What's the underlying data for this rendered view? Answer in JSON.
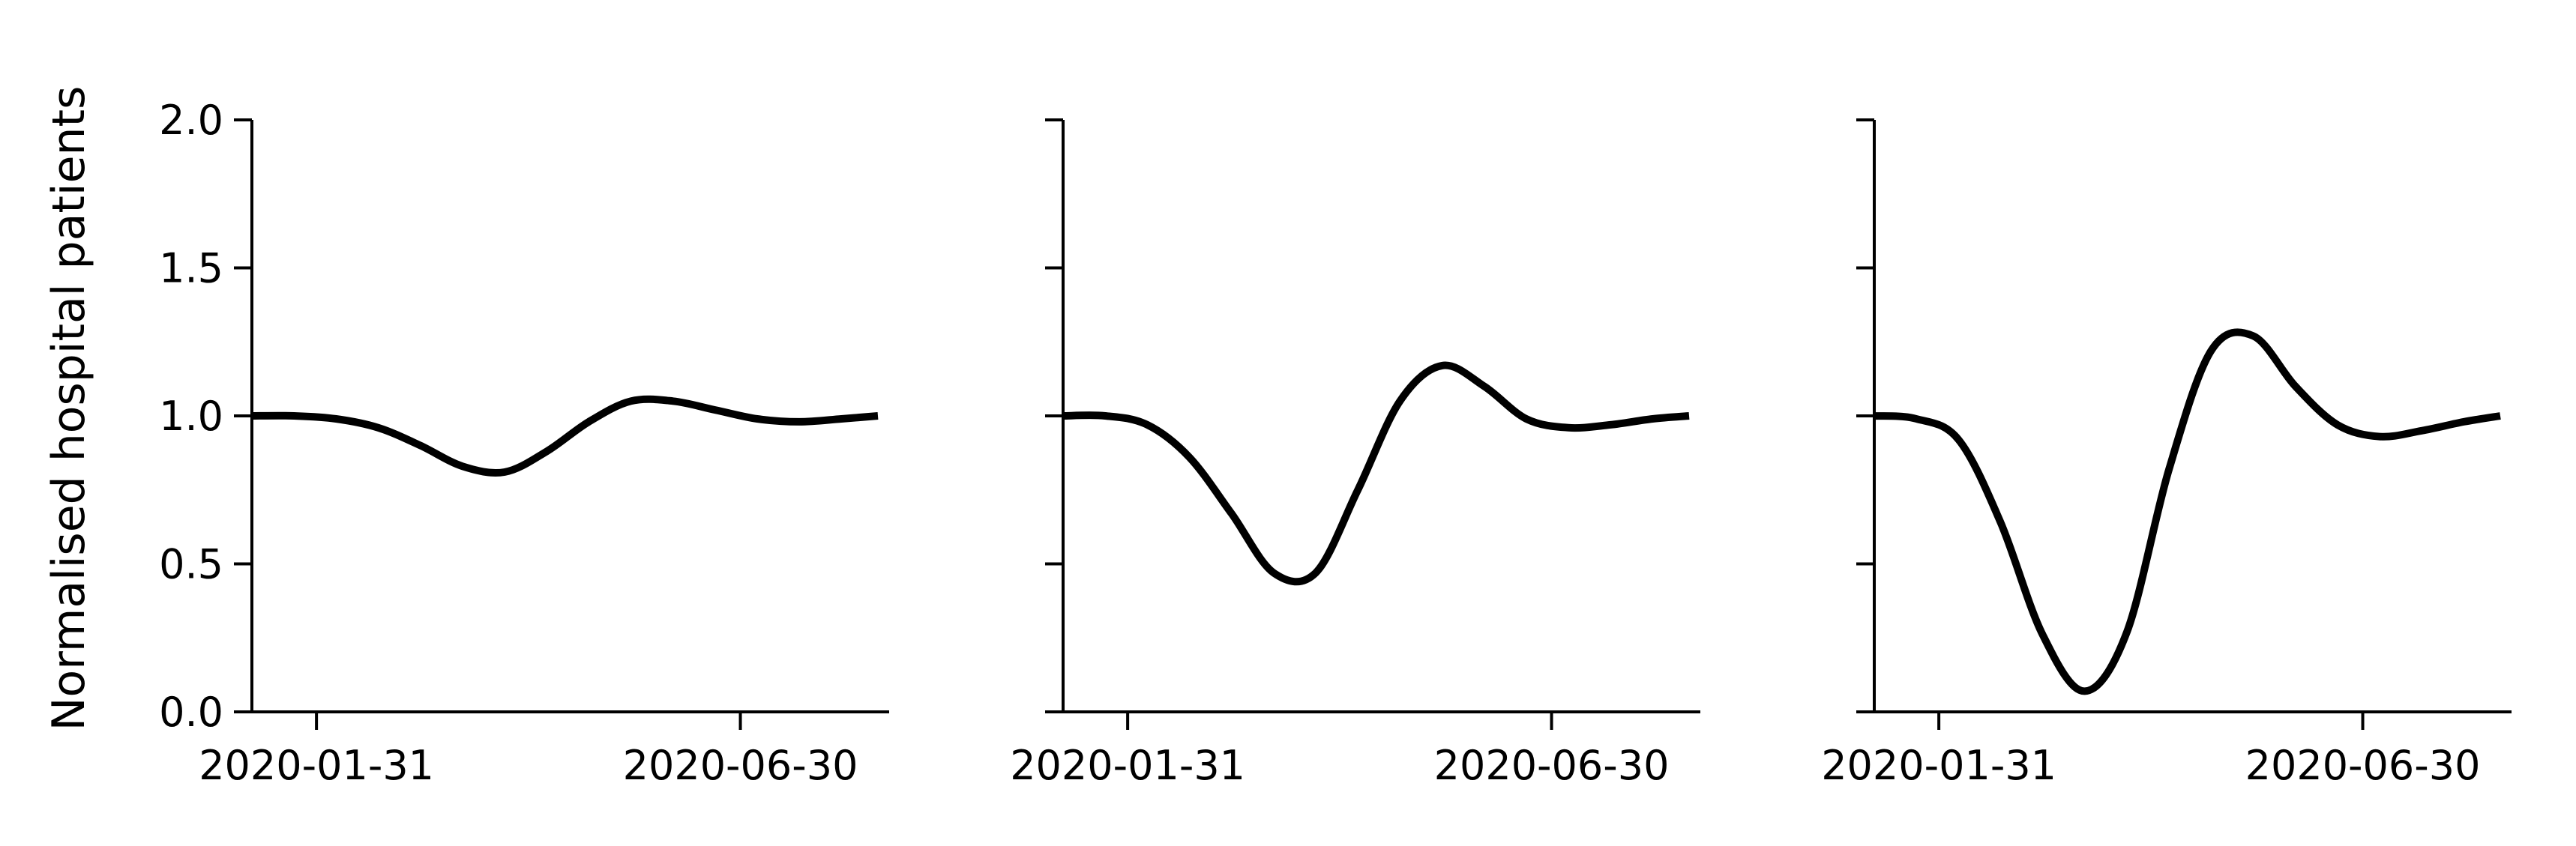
{
  "figure": {
    "ylabel": "Normalised hospital patients",
    "line_color": "#000000",
    "background": "#ffffff"
  },
  "chart_data": [
    {
      "type": "line",
      "ylabel": "Normalised hospital patients",
      "ylim": [
        0.0,
        2.0
      ],
      "y_ticks": [
        "0.0",
        "0.5",
        "1.0",
        "1.5",
        "2.0"
      ],
      "x_ticks": [
        "2020-01-31",
        "2020-06-30"
      ],
      "xlim": [
        "2020-01-08",
        "2020-08-22"
      ],
      "grid": false,
      "series": [
        {
          "x": [
            "2020-01-08",
            "2020-01-23",
            "2020-02-07",
            "2020-02-22",
            "2020-03-08",
            "2020-03-23",
            "2020-04-07",
            "2020-04-22",
            "2020-05-07",
            "2020-05-22",
            "2020-06-06",
            "2020-06-21",
            "2020-07-06",
            "2020-07-21",
            "2020-08-05",
            "2020-08-18"
          ],
          "y": [
            1.0,
            1.0,
            0.99,
            0.96,
            0.9,
            0.83,
            0.81,
            0.88,
            0.98,
            1.05,
            1.05,
            1.02,
            0.99,
            0.98,
            0.99,
            1.0
          ]
        }
      ]
    },
    {
      "type": "line",
      "ylabel": "",
      "ylim": [
        0.0,
        2.0
      ],
      "y_ticks": [
        "",
        "",
        "",
        "",
        ""
      ],
      "x_ticks": [
        "2020-01-31",
        "2020-06-30"
      ],
      "xlim": [
        "2020-01-08",
        "2020-08-22"
      ],
      "grid": false,
      "series": [
        {
          "x": [
            "2020-01-08",
            "2020-01-23",
            "2020-02-07",
            "2020-02-22",
            "2020-03-08",
            "2020-03-23",
            "2020-04-07",
            "2020-04-22",
            "2020-05-07",
            "2020-05-22",
            "2020-06-06",
            "2020-06-21",
            "2020-07-06",
            "2020-07-21",
            "2020-08-05",
            "2020-08-18"
          ],
          "y": [
            1.0,
            1.0,
            0.97,
            0.86,
            0.67,
            0.47,
            0.47,
            0.75,
            1.05,
            1.17,
            1.1,
            0.99,
            0.96,
            0.97,
            0.99,
            1.0
          ]
        }
      ]
    },
    {
      "type": "line",
      "ylabel": "",
      "ylim": [
        0.0,
        2.0
      ],
      "y_ticks": [
        "",
        "",
        "",
        "",
        ""
      ],
      "x_ticks": [
        "2020-01-31",
        "2020-06-30"
      ],
      "xlim": [
        "2020-01-08",
        "2020-08-22"
      ],
      "grid": false,
      "series": [
        {
          "x": [
            "2020-01-08",
            "2020-01-23",
            "2020-02-07",
            "2020-02-22",
            "2020-03-08",
            "2020-03-23",
            "2020-04-07",
            "2020-04-22",
            "2020-05-07",
            "2020-05-22",
            "2020-06-06",
            "2020-06-21",
            "2020-07-06",
            "2020-07-21",
            "2020-08-05",
            "2020-08-18"
          ],
          "y": [
            1.0,
            0.99,
            0.92,
            0.64,
            0.26,
            0.07,
            0.27,
            0.82,
            1.22,
            1.27,
            1.1,
            0.97,
            0.93,
            0.95,
            0.98,
            1.0
          ]
        }
      ]
    }
  ]
}
